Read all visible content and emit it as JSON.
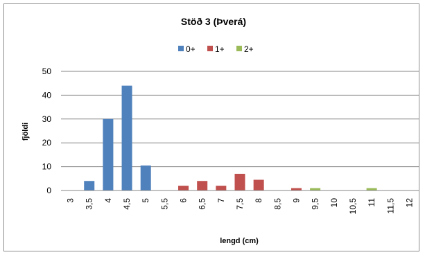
{
  "chart_data": {
    "type": "bar",
    "title": "Stöð 3 (Þverá)",
    "xlabel": "lengd (cm)",
    "ylabel": "fjöldi",
    "ylim": [
      0,
      50
    ],
    "yticks": [
      0,
      10,
      20,
      30,
      40,
      50
    ],
    "grid": true,
    "legend_position": "top",
    "categories": [
      "3",
      "3,5",
      "4",
      "4,5",
      "5",
      "5,5",
      "6",
      "6,5",
      "7",
      "7,5",
      "8",
      "8,5",
      "9",
      "9,5",
      "10",
      "10,5",
      "11",
      "11,5",
      "12"
    ],
    "series": [
      {
        "name": "0+",
        "color": "#4f81bd",
        "values": [
          0,
          4,
          30,
          44,
          10.5,
          0,
          0,
          0,
          0,
          0,
          0,
          0,
          0,
          0,
          0,
          0,
          0,
          0,
          0
        ]
      },
      {
        "name": "1+",
        "color": "#c0504d",
        "values": [
          0,
          0,
          0,
          0,
          0,
          0,
          2,
          4,
          2,
          7,
          4.5,
          0,
          1,
          0,
          0,
          0,
          0,
          0,
          0
        ]
      },
      {
        "name": "2+",
        "color": "#9bbb59",
        "values": [
          0,
          0,
          0,
          0,
          0,
          0,
          0,
          0,
          0,
          0,
          0,
          0,
          0,
          1,
          0,
          0,
          1,
          0,
          0
        ]
      }
    ]
  }
}
